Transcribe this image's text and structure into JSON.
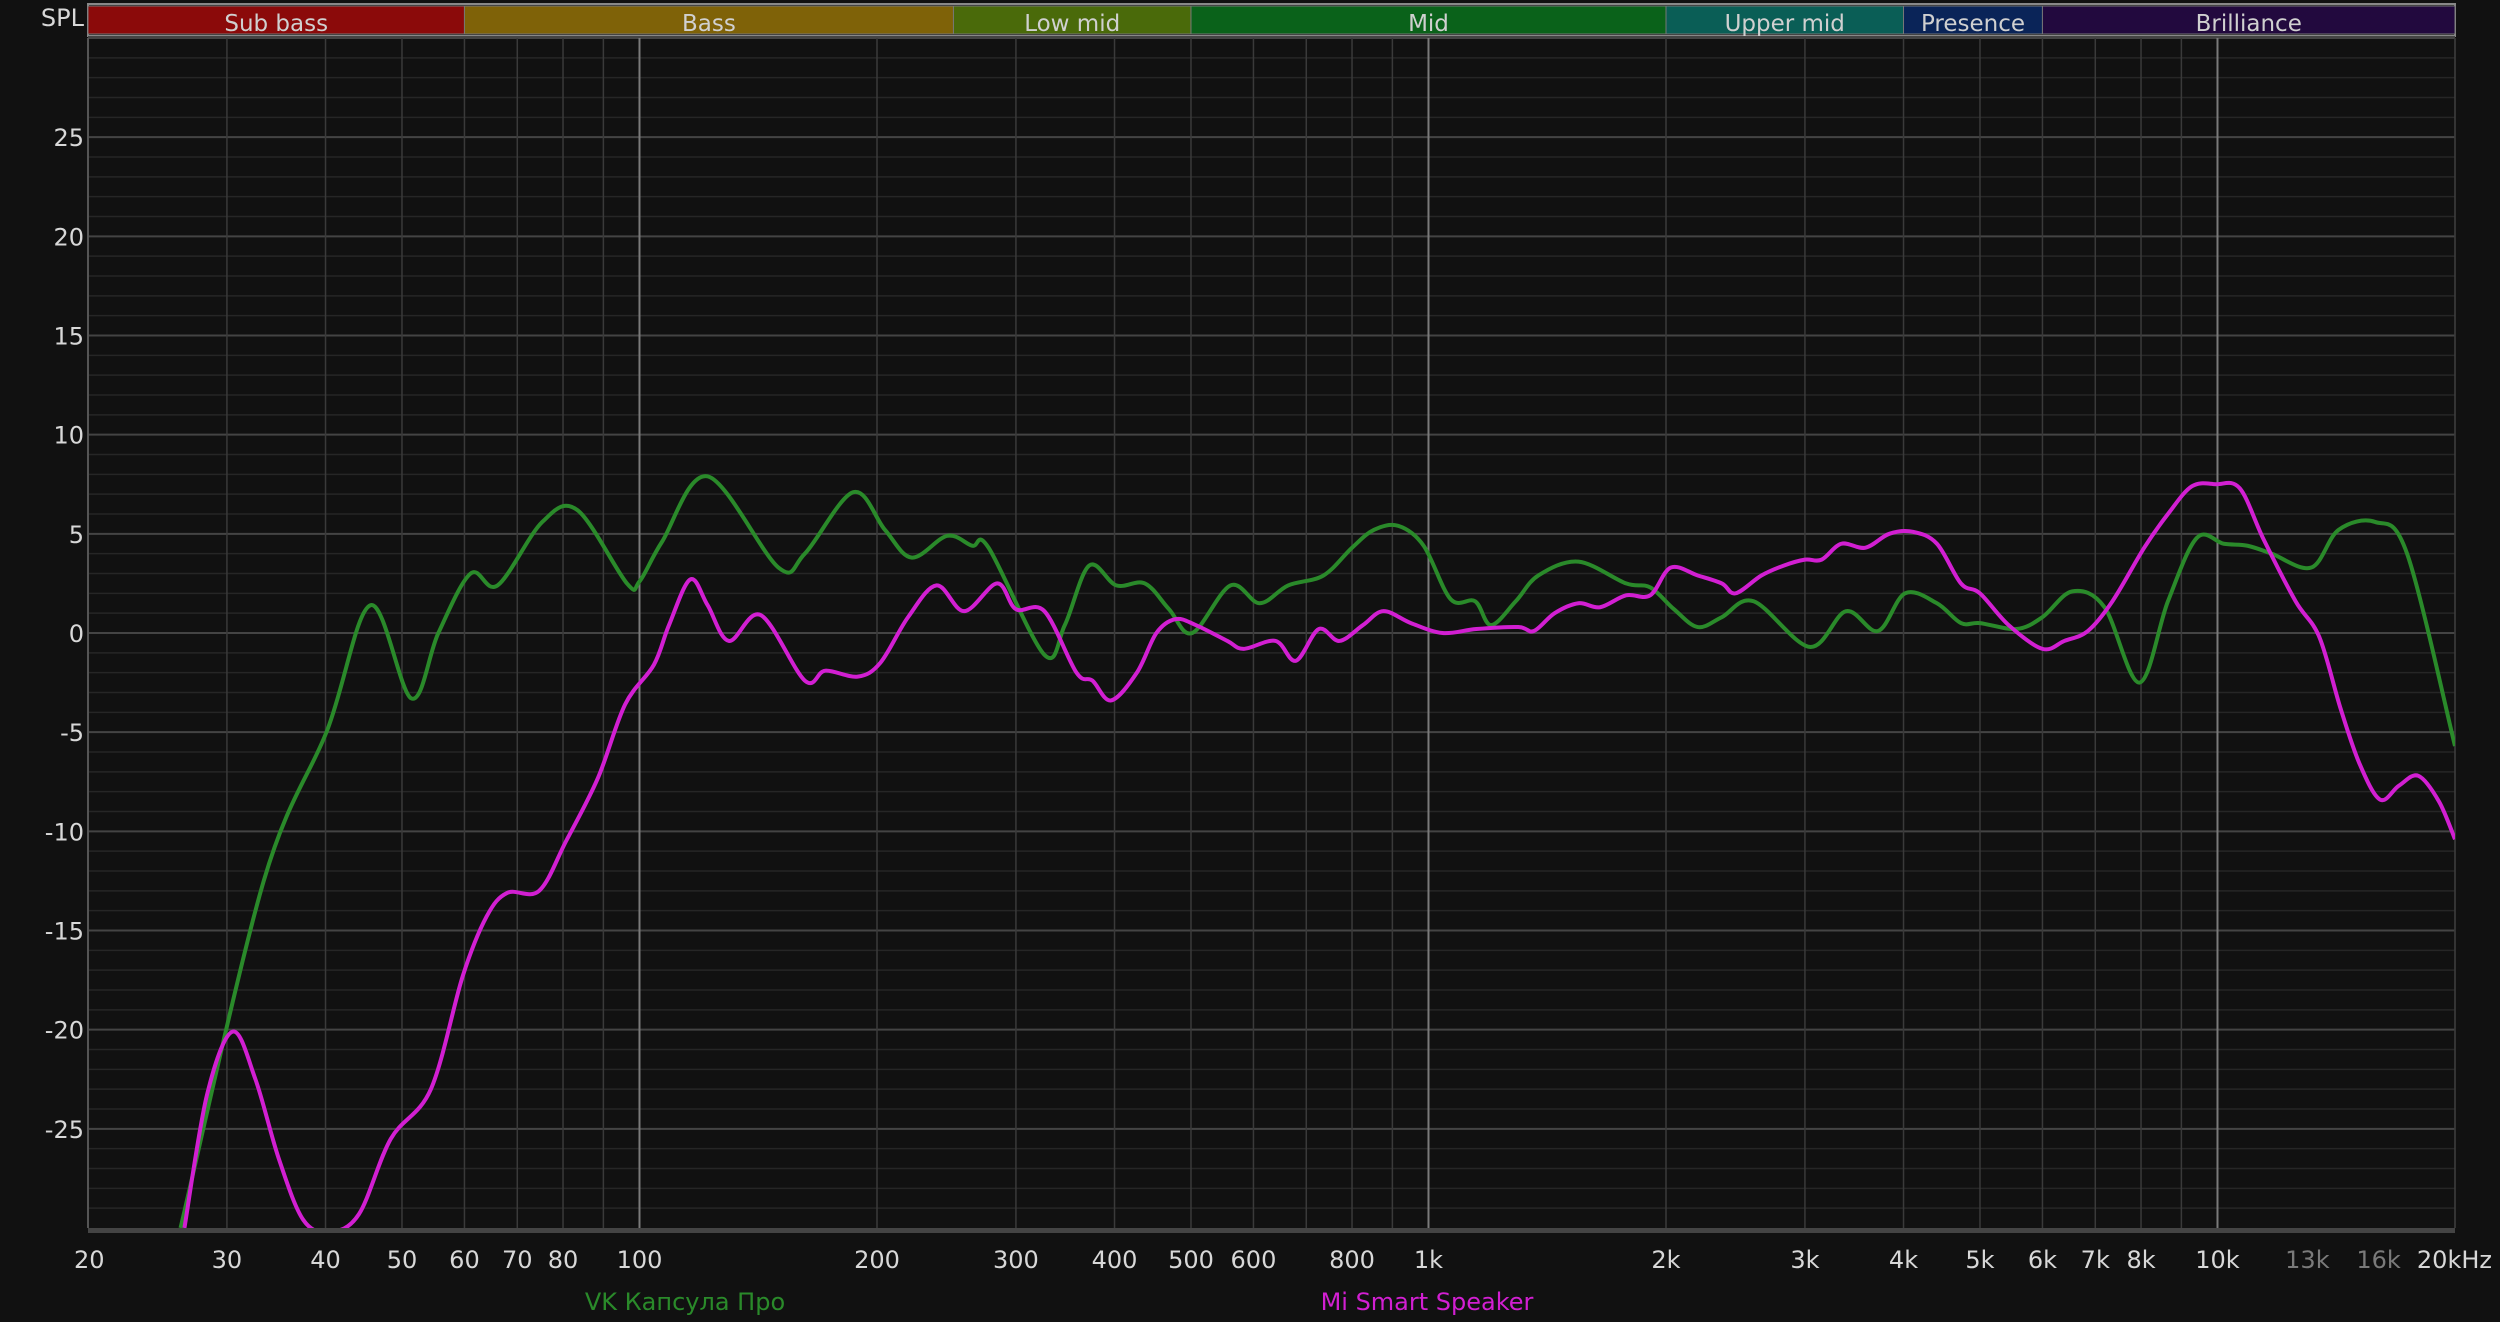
{
  "chart_data": {
    "type": "line",
    "ylabel": "SPL",
    "x_scale": "log",
    "xlim": [
      20,
      20000
    ],
    "ylim": [
      -30,
      30
    ],
    "grid": true,
    "legend_placement": "bottom",
    "y_ticks": [
      -25,
      -20,
      -15,
      -10,
      -5,
      0,
      5,
      10,
      15,
      20,
      25
    ],
    "x_ticks": [
      {
        "f": 20,
        "label": "20"
      },
      {
        "f": 30,
        "label": "30"
      },
      {
        "f": 40,
        "label": "40"
      },
      {
        "f": 50,
        "label": "50"
      },
      {
        "f": 60,
        "label": "60"
      },
      {
        "f": 70,
        "label": "70"
      },
      {
        "f": 80,
        "label": "80"
      },
      {
        "f": 100,
        "label": "100"
      },
      {
        "f": 200,
        "label": "200"
      },
      {
        "f": 300,
        "label": "300"
      },
      {
        "f": 400,
        "label": "400"
      },
      {
        "f": 500,
        "label": "500"
      },
      {
        "f": 600,
        "label": "600"
      },
      {
        "f": 800,
        "label": "800"
      },
      {
        "f": 1000,
        "label": "1k"
      },
      {
        "f": 2000,
        "label": "2k"
      },
      {
        "f": 3000,
        "label": "3k"
      },
      {
        "f": 4000,
        "label": "4k"
      },
      {
        "f": 5000,
        "label": "5k"
      },
      {
        "f": 6000,
        "label": "6k"
      },
      {
        "f": 7000,
        "label": "7k"
      },
      {
        "f": 8000,
        "label": "8k"
      },
      {
        "f": 10000,
        "label": "10k"
      },
      {
        "f": 13000,
        "label": "13k",
        "dim": true
      },
      {
        "f": 16000,
        "label": "16k",
        "dim": true
      },
      {
        "f": 20000,
        "label": "20kHz"
      }
    ],
    "bands": [
      {
        "name": "Sub bass",
        "from": 20,
        "to": 60,
        "color": "#8b0a0a"
      },
      {
        "name": "Bass",
        "from": 60,
        "to": 250,
        "color": "#7f6208"
      },
      {
        "name": "Low mid",
        "from": 250,
        "to": 500,
        "color": "#4a6a0a"
      },
      {
        "name": "Mid",
        "from": 500,
        "to": 2000,
        "color": "#0a621a"
      },
      {
        "name": "Upper mid",
        "from": 2000,
        "to": 4000,
        "color": "#0a5e56"
      },
      {
        "name": "Presence",
        "from": 4000,
        "to": 6000,
        "color": "#0a2458"
      },
      {
        "name": "Brilliance",
        "from": 6000,
        "to": 20000,
        "color": "#22093e"
      }
    ],
    "series": [
      {
        "name": "VK Капсула Про",
        "color": "#2a8a2a",
        "points": [
          [
            26.2,
            -30
          ],
          [
            33.4,
            -12.5
          ],
          [
            40.2,
            -4.9
          ],
          [
            45.6,
            1.4
          ],
          [
            51.4,
            -3.3
          ],
          [
            55.6,
            0
          ],
          [
            61.1,
            3.0
          ],
          [
            66.1,
            2.4
          ],
          [
            75.3,
            5.6
          ],
          [
            83.4,
            6.2
          ],
          [
            96.4,
            2.5
          ],
          [
            100,
            2.6
          ],
          [
            106.8,
            4.6
          ],
          [
            122,
            7.9
          ],
          [
            150,
            3.3
          ],
          [
            162,
            4
          ],
          [
            186.6,
            7.1
          ],
          [
            204.7,
            5.2
          ],
          [
            221.4,
            3.8
          ],
          [
            245.5,
            4.9
          ],
          [
            264,
            4.4
          ],
          [
            277,
            4.3
          ],
          [
            326,
            -1.1
          ],
          [
            346,
            0.4
          ],
          [
            371.5,
            3.4
          ],
          [
            402,
            2.4
          ],
          [
            437,
            2.5
          ],
          [
            469,
            1.2
          ],
          [
            502,
            0
          ],
          [
            561,
            2.4
          ],
          [
            611,
            1.5
          ],
          [
            664,
            2.4
          ],
          [
            736,
            2.9
          ],
          [
            800,
            4.3
          ],
          [
            853,
            5.2
          ],
          [
            916,
            5.4
          ],
          [
            986,
            4.4
          ],
          [
            1067,
            1.7
          ],
          [
            1146,
            1.6
          ],
          [
            1200,
            0.4
          ],
          [
            1290,
            1.6
          ],
          [
            1378,
            2.9
          ],
          [
            1549,
            3.6
          ],
          [
            1780,
            2.5
          ],
          [
            1910,
            2.3
          ],
          [
            2047,
            1.2
          ],
          [
            2194,
            0.3
          ],
          [
            2354,
            0.8
          ],
          [
            2583,
            1.6
          ],
          [
            3042,
            -0.7
          ],
          [
            3382,
            1.1
          ],
          [
            3713,
            0.1
          ],
          [
            4018,
            2.0
          ],
          [
            4410,
            1.5
          ],
          [
            4730,
            0.5
          ],
          [
            5000,
            0.5
          ],
          [
            5563,
            0.2
          ],
          [
            6000,
            0.8
          ],
          [
            6546,
            2.1
          ],
          [
            7191,
            1.3
          ],
          [
            7962,
            -2.5
          ],
          [
            8654,
            1.6
          ],
          [
            9417,
            4.8
          ],
          [
            10185,
            4.5
          ],
          [
            10918,
            4.4
          ],
          [
            11710,
            4
          ],
          [
            13150,
            3.3
          ],
          [
            14240,
            5.2
          ],
          [
            15840,
            5.6
          ],
          [
            17390,
            4
          ],
          [
            20000,
            -5.7
          ]
        ]
      },
      {
        "name": "Mi Smart Speaker",
        "color": "#d21fd2",
        "points": [
          [
            26.5,
            -30
          ],
          [
            28.3,
            -23.3
          ],
          [
            30.5,
            -20.1
          ],
          [
            32.6,
            -22.5
          ],
          [
            34.9,
            -26.5
          ],
          [
            37.5,
            -29.6
          ],
          [
            40.5,
            -30.2
          ],
          [
            44.1,
            -29.3
          ],
          [
            48.4,
            -25.5
          ],
          [
            54.4,
            -23
          ],
          [
            59.7,
            -17.3
          ],
          [
            64,
            -14.3
          ],
          [
            68,
            -13.1
          ],
          [
            74.6,
            -13
          ],
          [
            80.7,
            -10.5
          ],
          [
            88.6,
            -7.3
          ],
          [
            95.9,
            -3.6
          ],
          [
            104.3,
            -1.6
          ],
          [
            109,
            0.4
          ],
          [
            116,
            2.7
          ],
          [
            122,
            1.4
          ],
          [
            129.8,
            -0.4
          ],
          [
            142.5,
            0.9
          ],
          [
            162,
            -2.4
          ],
          [
            172,
            -1.9
          ],
          [
            189,
            -2.2
          ],
          [
            202,
            -1.5
          ],
          [
            219,
            0.8
          ],
          [
            238,
            2.4
          ],
          [
            258,
            1.1
          ],
          [
            284,
            2.5
          ],
          [
            300,
            1.2
          ],
          [
            326,
            1.1
          ],
          [
            358,
            -2
          ],
          [
            375,
            -2.4
          ],
          [
            396,
            -3.4
          ],
          [
            427,
            -2
          ],
          [
            452,
            0
          ],
          [
            478,
            0.7
          ],
          [
            507,
            0.4
          ],
          [
            556,
            -0.4
          ],
          [
            583,
            -0.8
          ],
          [
            640,
            -0.4
          ],
          [
            679,
            -1.4
          ],
          [
            726,
            0.2
          ],
          [
            771,
            -0.4
          ],
          [
            826,
            0.4
          ],
          [
            877,
            1.1
          ],
          [
            950,
            0.5
          ],
          [
            1042,
            0
          ],
          [
            1150,
            0.2
          ],
          [
            1300,
            0.3
          ],
          [
            1360,
            0.1
          ],
          [
            1445,
            1.0
          ],
          [
            1549,
            1.5
          ],
          [
            1650,
            1.3
          ],
          [
            1780,
            1.9
          ],
          [
            1910,
            1.9
          ],
          [
            2028,
            3.3
          ],
          [
            2194,
            2.9
          ],
          [
            2354,
            2.5
          ],
          [
            2450,
            2
          ],
          [
            2642,
            2.9
          ],
          [
            2820,
            3.4
          ],
          [
            3000,
            3.7
          ],
          [
            3150,
            3.7
          ],
          [
            3336,
            4.5
          ],
          [
            3580,
            4.3
          ],
          [
            3837,
            5.0
          ],
          [
            4112,
            5.1
          ],
          [
            4410,
            4.5
          ],
          [
            4730,
            2.5
          ],
          [
            5000,
            2
          ],
          [
            5436,
            0.4
          ],
          [
            6000,
            -0.8
          ],
          [
            6396,
            -0.4
          ],
          [
            6850,
            0.1
          ],
          [
            7360,
            1.6
          ],
          [
            8075,
            4.3
          ],
          [
            8654,
            6
          ],
          [
            9283,
            7.4
          ],
          [
            9954,
            7.5
          ],
          [
            10670,
            7.3
          ],
          [
            11447,
            4.7
          ],
          [
            12560,
            1.6
          ],
          [
            13460,
            -0.2
          ],
          [
            14320,
            -3.8
          ],
          [
            15140,
            -6.6
          ],
          [
            16070,
            -8.4
          ],
          [
            16980,
            -7.7
          ],
          [
            17970,
            -7.2
          ],
          [
            19090,
            -8.5
          ],
          [
            20000,
            -10.4
          ]
        ]
      }
    ]
  }
}
